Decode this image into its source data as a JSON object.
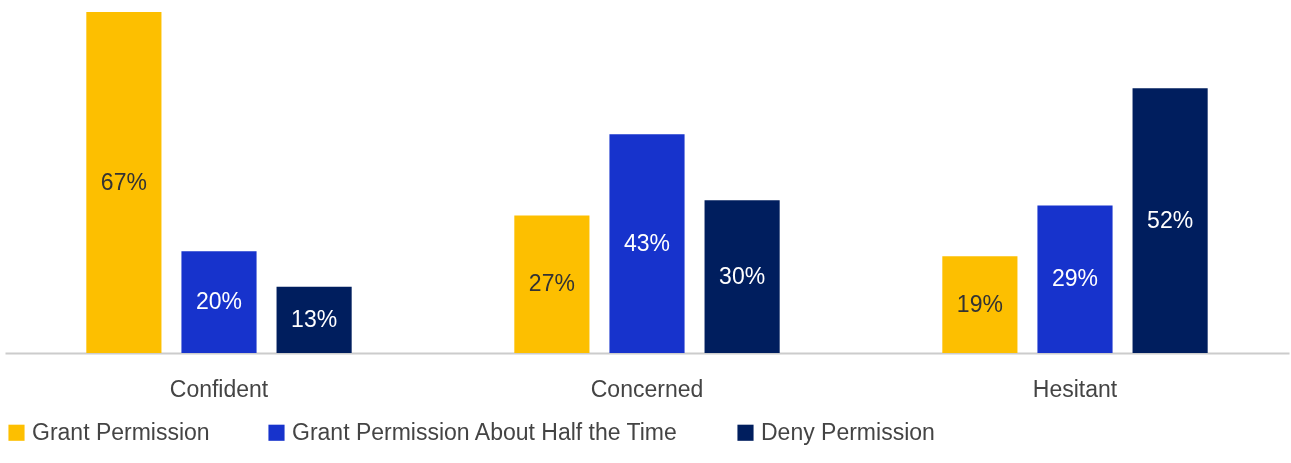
{
  "chart_data": {
    "type": "bar",
    "categories": [
      "Confident",
      "Concerned",
      "Hesitant"
    ],
    "legend": "bottom",
    "grid": false,
    "series": [
      {
        "name": "Grant Permission",
        "color": "#fdbf00",
        "values": [
          67,
          27,
          19
        ],
        "value_labels": [
          "67%",
          "27%",
          "19%"
        ]
      },
      {
        "name": "Grant Permission About Half the Time",
        "color": "#1733cc",
        "values": [
          20,
          43,
          29
        ],
        "value_labels": [
          "20%",
          "43%",
          "29%"
        ]
      },
      {
        "name": "Deny Permission",
        "color": "#001e5e",
        "values": [
          13,
          30,
          52
        ],
        "value_labels": [
          "13%",
          "30%",
          "52%"
        ]
      }
    ]
  }
}
